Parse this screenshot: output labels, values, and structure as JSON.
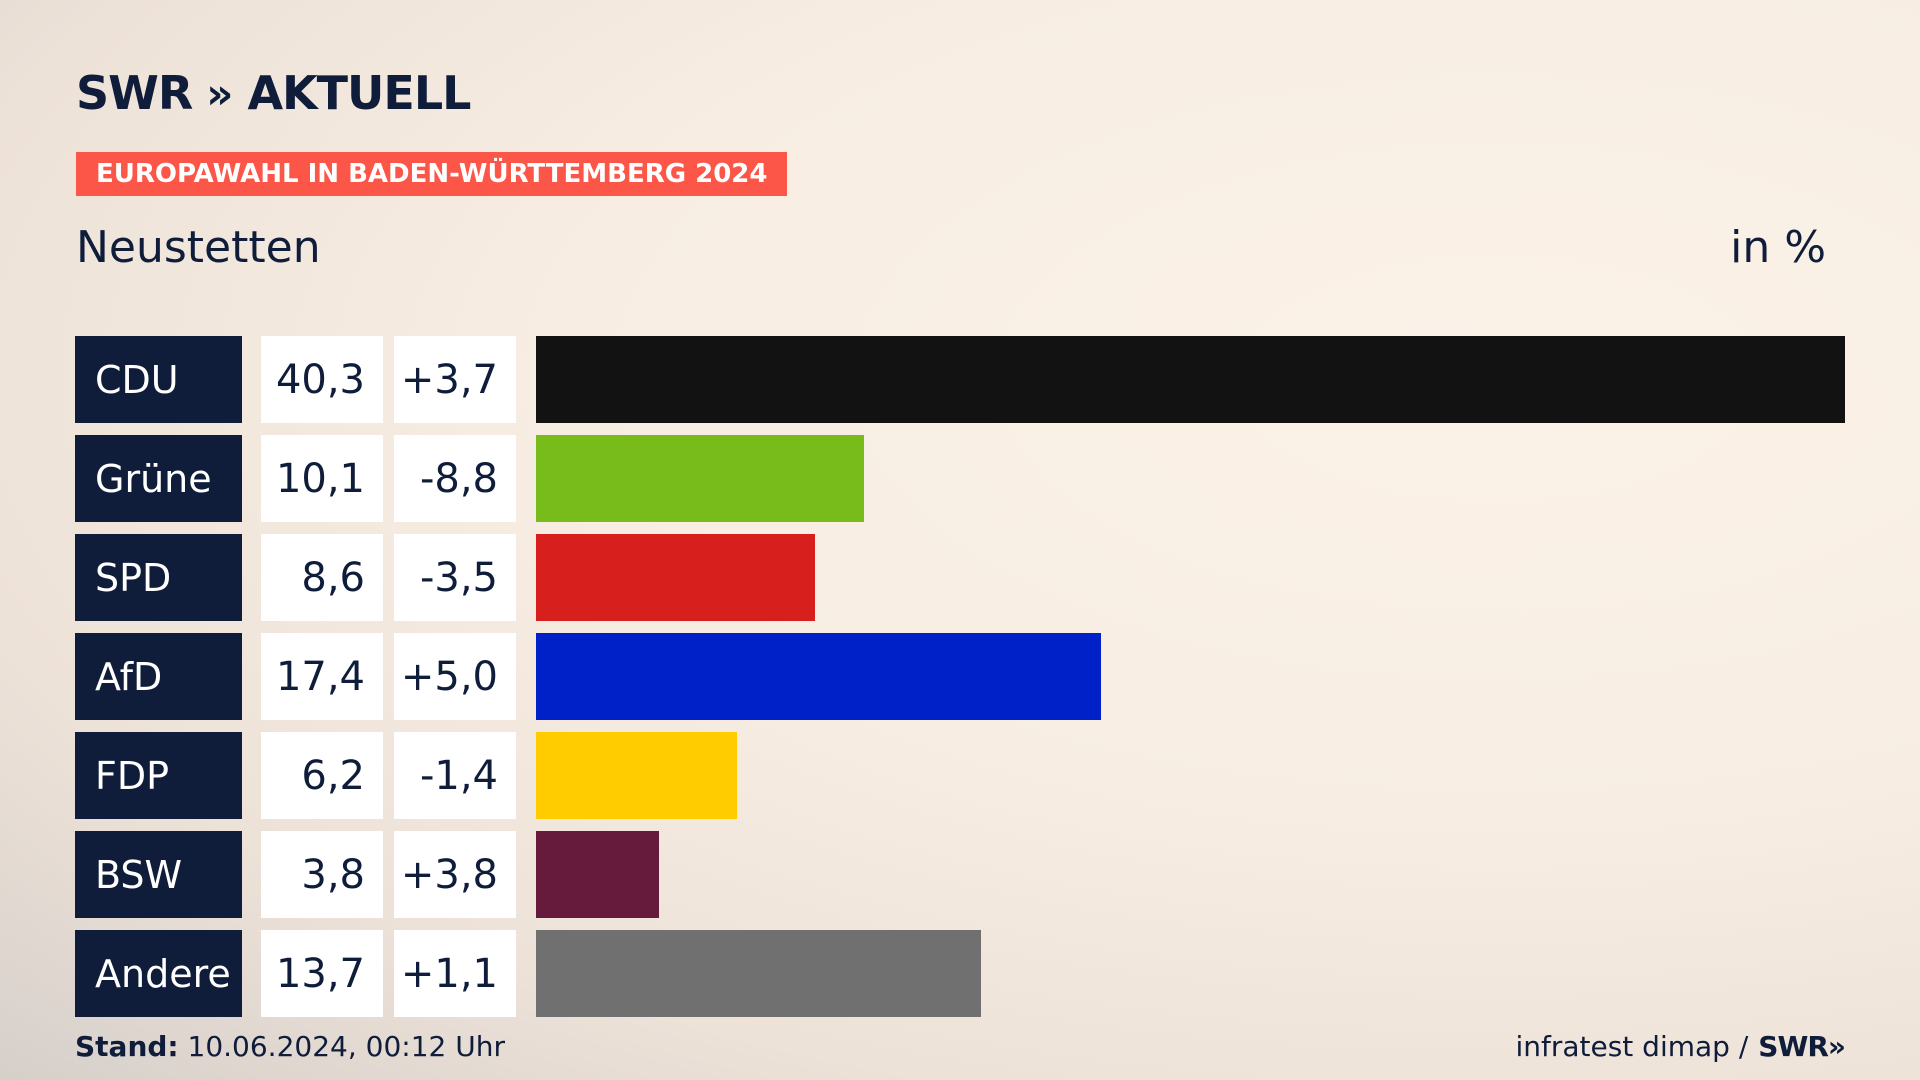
{
  "brand": {
    "name": "SWR",
    "arrows": "»",
    "product": "AKTUELL"
  },
  "badge": "EUROPAWAHL IN BADEN-WÜRTTEMBERG 2024",
  "location": "Neustetten",
  "unit": "in %",
  "chart_data": {
    "type": "bar",
    "orientation": "horizontal",
    "title": "Neustetten",
    "unit": "in %",
    "categories": [
      "CDU",
      "Grüne",
      "SPD",
      "AfD",
      "FDP",
      "BSW",
      "Andere"
    ],
    "values": [
      40.3,
      10.1,
      8.6,
      17.4,
      6.2,
      3.8,
      13.7
    ],
    "value_labels": [
      "40,3",
      "10,1",
      "8,6",
      "17,4",
      "6,2",
      "3,8",
      "13,7"
    ],
    "diff_labels": [
      "+3,7",
      "-8,8",
      "-3,5",
      "+5,0",
      "-1,4",
      "+3,8",
      "+1,1"
    ],
    "colors": [
      "#121212",
      "#78bc1b",
      "#d71f1d",
      "#0021c8",
      "#ffcc00",
      "#661a3c",
      "#707070"
    ],
    "xlim": [
      0,
      40.3
    ]
  },
  "footer": {
    "stand_label": "Stand:",
    "stand_value": " 10.06.2024, 00:12 Uhr",
    "source": "infratest dimap /",
    "logo": "SWR",
    "logo_arrows": "»"
  }
}
